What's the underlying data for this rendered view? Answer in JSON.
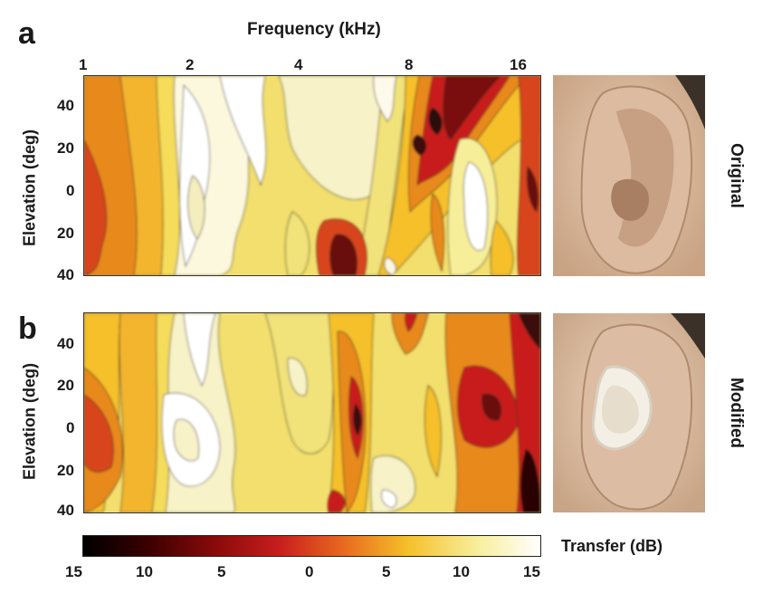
{
  "panels": [
    {
      "letter": "a",
      "side_label": "Original",
      "y_title": "Elevation (deg)",
      "y_ticks": [
        "40",
        "20",
        "0",
        "20",
        "40"
      ]
    },
    {
      "letter": "b",
      "side_label": "Modified",
      "y_title": "Elevation (deg)",
      "y_ticks": [
        "40",
        "20",
        "0",
        "20",
        "40"
      ]
    }
  ],
  "x_axis": {
    "title": "Frequency (kHz)",
    "ticks": [
      "1",
      "2",
      "4",
      "8",
      "16"
    ]
  },
  "colorbar": {
    "label": "Transfer (dB)",
    "ticks": [
      "15",
      "10",
      "5",
      "0",
      "5",
      "10",
      "15"
    ],
    "colors": [
      "#000000",
      "#3a0000",
      "#8a0a0a",
      "#c81e1e",
      "#e86a1e",
      "#f5c02a",
      "#f7ee9a",
      "#ffffff"
    ]
  }
}
